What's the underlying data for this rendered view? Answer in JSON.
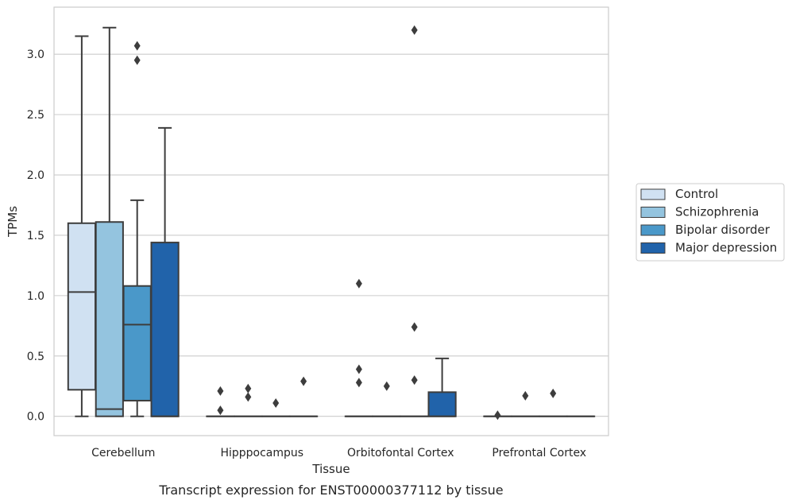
{
  "caption": "Transcript expression for ENST00000377112 by tissue",
  "chart_data": {
    "type": "boxplot",
    "xlabel": "Tissue",
    "ylabel": "TPMs",
    "ylim": [
      -0.16,
      3.39
    ],
    "yticks": [
      0.0,
      0.5,
      1.0,
      1.5,
      2.0,
      2.5,
      3.0
    ],
    "ytick_labels": [
      "0.0",
      "0.5",
      "1.0",
      "1.5",
      "2.0",
      "2.5",
      "3.0"
    ],
    "grid": "horizontal",
    "legend_position": "right",
    "categories": [
      "Cerebellum",
      "Hipppocampus",
      "Orbitofontal Cortex",
      "Prefrontal Cortex"
    ],
    "series": [
      {
        "name": "Control",
        "color": "#d0e1f2",
        "boxes": [
          {
            "whisker_low": 0.0,
            "q1": 0.22,
            "median": 1.03,
            "q3": 1.6,
            "whisker_high": 3.15,
            "outliers": []
          },
          {
            "whisker_low": 0.0,
            "q1": 0.0,
            "median": 0.0,
            "q3": 0.0,
            "whisker_high": 0.0,
            "outliers": [
              0.05,
              0.21
            ]
          },
          {
            "whisker_low": 0.0,
            "q1": 0.0,
            "median": 0.0,
            "q3": 0.0,
            "whisker_high": 0.0,
            "outliers": [
              0.28,
              0.39,
              1.1
            ]
          },
          {
            "whisker_low": 0.0,
            "q1": 0.0,
            "median": 0.0,
            "q3": 0.0,
            "whisker_high": 0.0,
            "outliers": [
              0.01
            ]
          }
        ]
      },
      {
        "name": "Schizophrenia",
        "color": "#94c4df",
        "boxes": [
          {
            "whisker_low": 0.0,
            "q1": 0.0,
            "median": 0.06,
            "q3": 1.61,
            "whisker_high": 3.22,
            "outliers": []
          },
          {
            "whisker_low": 0.0,
            "q1": 0.0,
            "median": 0.0,
            "q3": 0.0,
            "whisker_high": 0.0,
            "outliers": [
              0.16,
              0.23
            ]
          },
          {
            "whisker_low": 0.0,
            "q1": 0.0,
            "median": 0.0,
            "q3": 0.0,
            "whisker_high": 0.0,
            "outliers": [
              0.25
            ]
          },
          {
            "whisker_low": 0.0,
            "q1": 0.0,
            "median": 0.0,
            "q3": 0.0,
            "whisker_high": 0.0,
            "outliers": [
              0.17
            ]
          }
        ]
      },
      {
        "name": "Bipolar disorder",
        "color": "#4a98c9",
        "boxes": [
          {
            "whisker_low": 0.0,
            "q1": 0.13,
            "median": 0.76,
            "q3": 1.08,
            "whisker_high": 1.79,
            "outliers": [
              2.95,
              3.07
            ]
          },
          {
            "whisker_low": 0.0,
            "q1": 0.0,
            "median": 0.0,
            "q3": 0.0,
            "whisker_high": 0.0,
            "outliers": [
              0.11
            ]
          },
          {
            "whisker_low": 0.0,
            "q1": 0.0,
            "median": 0.0,
            "q3": 0.0,
            "whisker_high": 0.0,
            "outliers": [
              0.3,
              0.74,
              3.2
            ]
          },
          {
            "whisker_low": 0.0,
            "q1": 0.0,
            "median": 0.0,
            "q3": 0.0,
            "whisker_high": 0.0,
            "outliers": [
              0.19
            ]
          }
        ]
      },
      {
        "name": "Major depression",
        "color": "#2163aa",
        "boxes": [
          {
            "whisker_low": 0.0,
            "q1": 0.0,
            "median": 0.0,
            "q3": 1.44,
            "whisker_high": 2.39,
            "outliers": []
          },
          {
            "whisker_low": 0.0,
            "q1": 0.0,
            "median": 0.0,
            "q3": 0.0,
            "whisker_high": 0.0,
            "outliers": [
              0.29
            ]
          },
          {
            "whisker_low": 0.0,
            "q1": 0.0,
            "median": 0.0,
            "q3": 0.2,
            "whisker_high": 0.48,
            "outliers": []
          },
          {
            "whisker_low": 0.0,
            "q1": 0.0,
            "median": 0.0,
            "q3": 0.0,
            "whisker_high": 0.0,
            "outliers": []
          }
        ]
      }
    ]
  }
}
